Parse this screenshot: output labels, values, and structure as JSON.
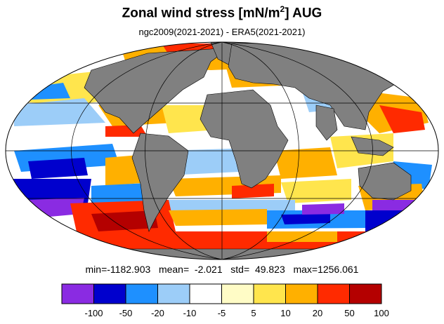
{
  "title": {
    "prefix": "Zonal wind stress [mN/m",
    "sup": "2",
    "suffix": "] AUG"
  },
  "subtitle": "ngc2009(2021-2021) - ERA5(2021-2021)",
  "stats": {
    "min_label": "min=",
    "min": "-1182.903",
    "mean_label": "mean=",
    "mean": "-2.021",
    "std_label": "std=",
    "std": "49.823",
    "max_label": "max=",
    "max": "1256.061"
  },
  "colors": {
    "land": "#808080",
    "ocean_background": "#ffffff",
    "grid": "#000000"
  },
  "colorbar": {
    "bins": [
      {
        "color": "#8a2be2"
      },
      {
        "color": "#0000cd"
      },
      {
        "color": "#1e90ff"
      },
      {
        "color": "#9ccdf8"
      },
      {
        "color": "#ffffff"
      },
      {
        "color": "#fffcc6"
      },
      {
        "color": "#ffe54d"
      },
      {
        "color": "#ffb000"
      },
      {
        "color": "#ff2a00"
      },
      {
        "color": "#b40000"
      }
    ],
    "tick_labels": [
      "-100",
      "-50",
      "-20",
      "-10",
      "-5",
      "5",
      "10",
      "20",
      "50",
      "100"
    ]
  }
}
